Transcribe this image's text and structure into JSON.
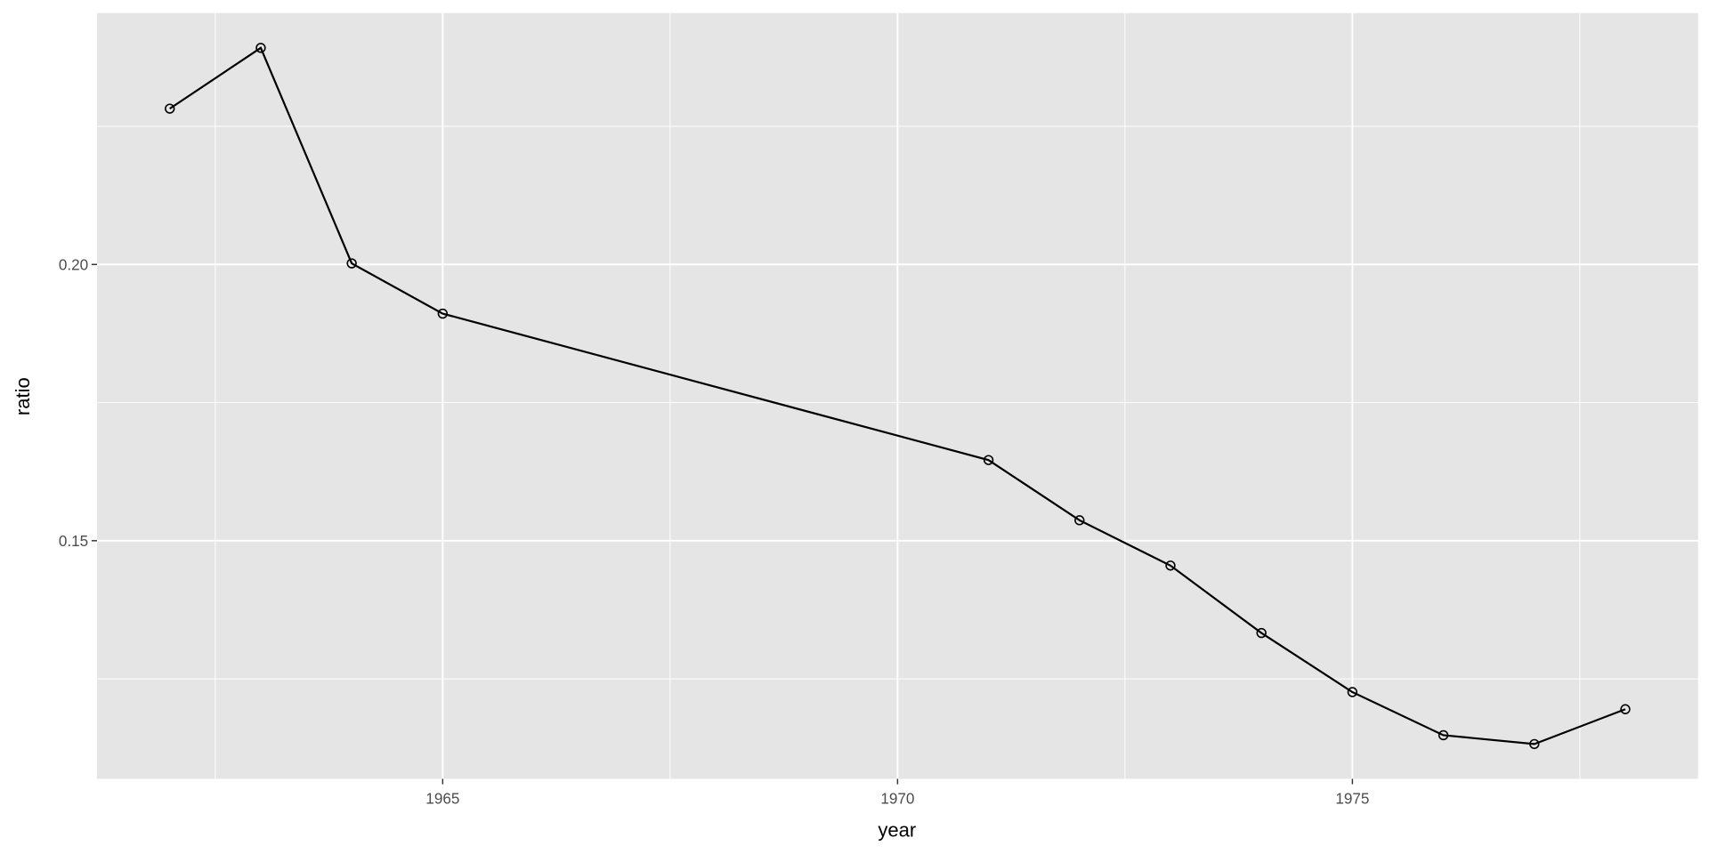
{
  "chart_data": {
    "type": "line",
    "title": "",
    "xlabel": "year",
    "ylabel": "ratio",
    "xlim": [
      1961.2,
      1978.8
    ],
    "ylim": [
      0.1069,
      0.2455
    ],
    "x_ticks": [
      1965,
      1970,
      1975
    ],
    "x_tick_labels": [
      "1965",
      "1970",
      "1975"
    ],
    "y_ticks": [
      0.15,
      0.2
    ],
    "y_tick_labels": [
      "0.15",
      "0.20"
    ],
    "grid": true,
    "legend": "none",
    "markers": "open-circle",
    "colors": {
      "panel": "#e5e5e5",
      "grid": "#ffffff",
      "line": "#000000"
    },
    "series": [
      {
        "x": [
          1962,
          1963,
          1964,
          1965,
          1971,
          1972,
          1973,
          1974,
          1975,
          1976,
          1977,
          1978
        ],
        "y": [
          0.2282,
          0.2392,
          0.2002,
          0.1911,
          0.1646,
          0.1537,
          0.1455,
          0.1333,
          0.1226,
          0.1148,
          0.1132,
          0.1195
        ]
      }
    ]
  }
}
